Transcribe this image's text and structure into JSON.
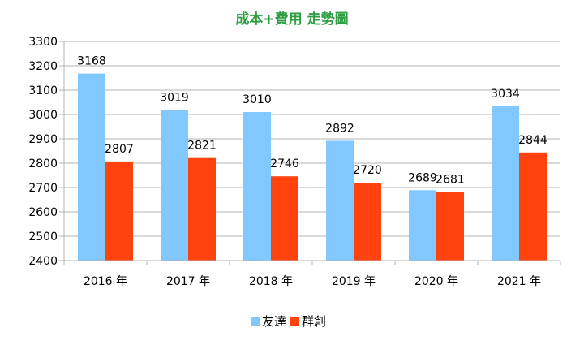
{
  "chart_data": {
    "type": "bar",
    "title": "成本+費用 走勢圖",
    "categories": [
      "2016 年",
      "2017 年",
      "2018 年",
      "2019 年",
      "2020 年",
      "2021 年"
    ],
    "series": [
      {
        "name": "友達",
        "values": [
          3168,
          3019,
          3010,
          2892,
          2689,
          3034
        ]
      },
      {
        "name": "群創",
        "values": [
          2807,
          2821,
          2746,
          2720,
          2681,
          2844
        ]
      }
    ],
    "ylim": [
      2400,
      3300
    ],
    "ystep": 100,
    "yticks": [
      "2400",
      "2500",
      "2600",
      "2700",
      "2800",
      "2900",
      "3000",
      "3100",
      "3200",
      "3300"
    ],
    "grid": true,
    "legend": "bottom",
    "colors": {
      "series": [
        "#80c8ff",
        "#ff420e"
      ],
      "title": "#2f9e44",
      "grid": "#b3b3b3"
    }
  }
}
